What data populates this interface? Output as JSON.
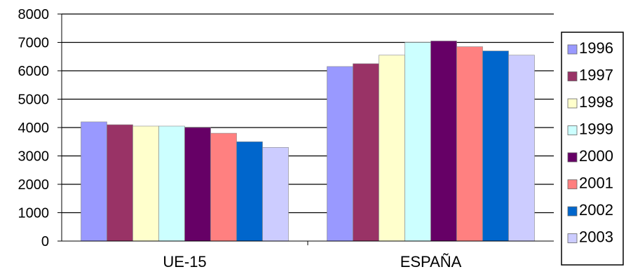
{
  "chart_data": {
    "type": "bar",
    "categories": [
      "UE-15",
      "ESPAÑA"
    ],
    "series": [
      {
        "name": "1996",
        "values": [
          4200,
          6150
        ],
        "color": "#9999ff"
      },
      {
        "name": "1997",
        "values": [
          4100,
          6250
        ],
        "color": "#993366"
      },
      {
        "name": "1998",
        "values": [
          4050,
          6550
        ],
        "color": "#ffffcc"
      },
      {
        "name": "1999",
        "values": [
          4050,
          7000
        ],
        "color": "#ccffff"
      },
      {
        "name": "2000",
        "values": [
          4000,
          7050
        ],
        "color": "#660066"
      },
      {
        "name": "2001",
        "values": [
          3800,
          6850
        ],
        "color": "#ff8080"
      },
      {
        "name": "2002",
        "values": [
          3500,
          6700
        ],
        "color": "#0066cc"
      },
      {
        "name": "2003",
        "values": [
          3300,
          6550
        ],
        "color": "#ccccff"
      }
    ],
    "ylim": [
      0,
      8000
    ],
    "y_ticks": [
      "0",
      "1000",
      "2000",
      "3000",
      "4000",
      "5000",
      "6000",
      "7000",
      "8000"
    ],
    "title": "",
    "xlabel": "",
    "ylabel": "",
    "grid": true,
    "legend": "right"
  }
}
